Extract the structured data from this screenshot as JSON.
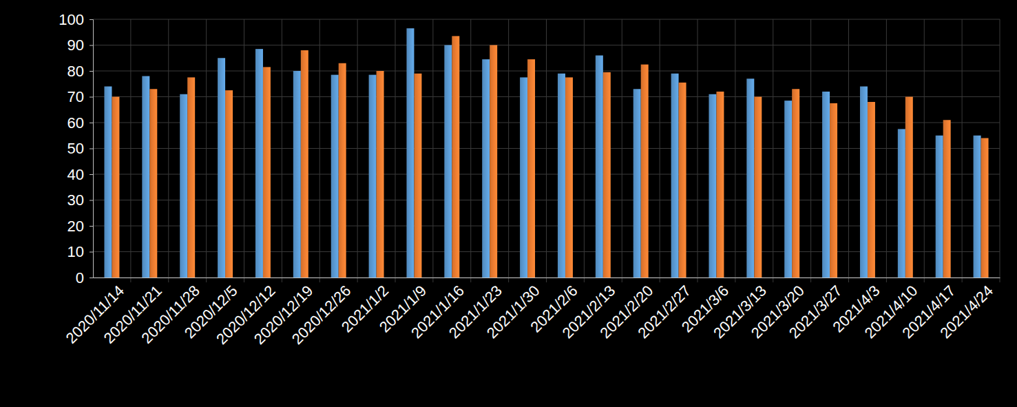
{
  "chart_data": {
    "type": "bar",
    "categories": [
      "2020/11/14",
      "2020/11/21",
      "2020/11/28",
      "2020/12/5",
      "2020/12/12",
      "2020/12/19",
      "2020/12/26",
      "2021/1/2",
      "2021/1/9",
      "2021/1/16",
      "2021/1/23",
      "2021/1/30",
      "2021/2/6",
      "2021/2/13",
      "2021/2/20",
      "2021/2/27",
      "2021/3/6",
      "2021/3/13",
      "2021/3/20",
      "2021/3/27",
      "2021/4/3",
      "2021/4/10",
      "2021/4/17",
      "2021/4/24"
    ],
    "series": [
      {
        "color": "#5b9bd5",
        "values": [
          74,
          78,
          71,
          85,
          88.5,
          80,
          78.5,
          78.5,
          96.5,
          90,
          84.5,
          77.5,
          79,
          86,
          73,
          79,
          71,
          77,
          68.5,
          72,
          74,
          57.5,
          55,
          55
        ]
      },
      {
        "color": "#ed7d31",
        "values": [
          70,
          73,
          77.5,
          72.5,
          81.5,
          88,
          83,
          80,
          79,
          93.5,
          90,
          84.5,
          77.5,
          79.5,
          82.5,
          75.5,
          72,
          70,
          73,
          67.5,
          68,
          70,
          61,
          54
        ]
      }
    ],
    "ylim": [
      0,
      100
    ],
    "yticks": [
      0,
      10,
      20,
      30,
      40,
      50,
      60,
      70,
      80,
      90,
      100
    ],
    "grid": true
  }
}
